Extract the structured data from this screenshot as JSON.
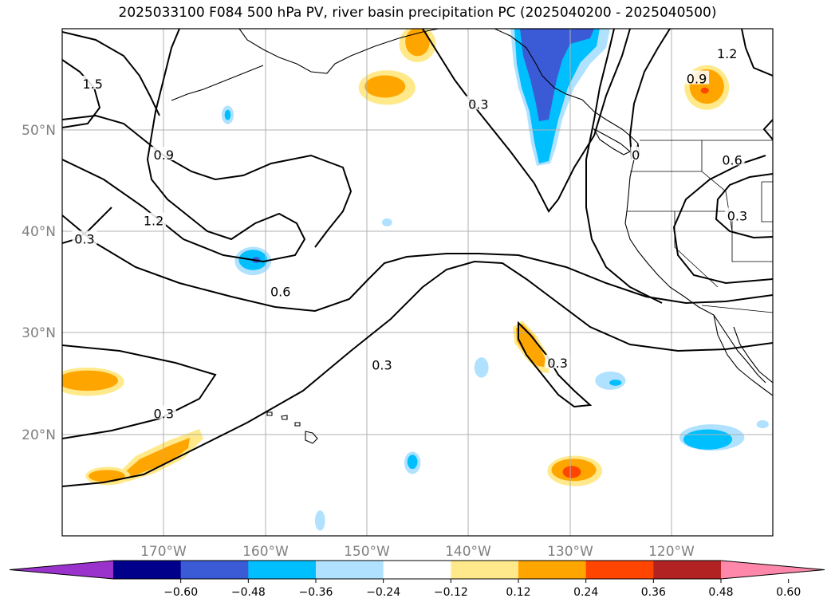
{
  "title": "2025033100 F084 500 hPa PV, river basin precipitation PC (2025040200 - 2025040500)",
  "map": {
    "projection": "PlateCarree",
    "lon_range": [
      -180,
      -110
    ],
    "lat_range": [
      10,
      60
    ],
    "lat_labels": [
      "50°N",
      "40°N",
      "30°N",
      "20°N"
    ],
    "lon_labels": [
      "170°W",
      "160°W",
      "150°W",
      "140°W",
      "130°W",
      "120°W"
    ],
    "lat_lines": [
      50,
      40,
      30,
      20
    ],
    "lon_lines": [
      -170,
      -160,
      -150,
      -140,
      -130,
      -120
    ],
    "grid": true
  },
  "contour_labels": [
    {
      "text": "1.5",
      "lon": -177.0,
      "lat": 54.5
    },
    {
      "text": "0.9",
      "lon": -170.0,
      "lat": 47.5
    },
    {
      "text": "1.2",
      "lon": -171.0,
      "lat": 41.0
    },
    {
      "text": "0.3",
      "lon": -177.8,
      "lat": 39.2
    },
    {
      "text": "0.6",
      "lon": -158.5,
      "lat": 34.0
    },
    {
      "text": "0.3",
      "lon": -148.5,
      "lat": 26.8
    },
    {
      "text": "0.3",
      "lon": -170.0,
      "lat": 22.0
    },
    {
      "text": "0.3",
      "lon": -139.0,
      "lat": 52.5
    },
    {
      "text": "0.3",
      "lon": -131.2,
      "lat": 27.0
    },
    {
      "text": "0.9",
      "lon": -117.5,
      "lat": 55.0
    },
    {
      "text": "1.2",
      "lon": -114.5,
      "lat": 57.5
    },
    {
      "text": "0.6",
      "lon": -114.0,
      "lat": 47.0
    },
    {
      "text": "0.3",
      "lon": -113.5,
      "lat": 41.5
    },
    {
      "text": "0",
      "lon": -123.5,
      "lat": 47.5
    }
  ],
  "colorbar": {
    "ticks": [
      "−0.60",
      "−0.48",
      "−0.36",
      "−0.24",
      "−0.12",
      "0.12",
      "0.24",
      "0.36",
      "0.48",
      "0.60"
    ],
    "levels": [
      -0.6,
      -0.48,
      -0.36,
      -0.24,
      -0.12,
      0.12,
      0.24,
      0.36,
      0.48,
      0.6
    ],
    "colors": [
      "#9933cc",
      "#00008b",
      "#3b5bd6",
      "#00bfff",
      "#b0e2ff",
      "#ffffff",
      "#ffe98a",
      "#ffa500",
      "#ff4500",
      "#b22222",
      "#ff88aa"
    ],
    "extend": "both"
  },
  "precip_blobs": [
    {
      "color": "#ffe98a",
      "lon": -148.0,
      "lat": 54.2,
      "rx": 2.8,
      "ry": 1.7
    },
    {
      "color": "#ffa500",
      "lon": -148.2,
      "lat": 54.3,
      "rx": 2.0,
      "ry": 1.1
    },
    {
      "color": "#ffe98a",
      "lon": -145.0,
      "lat": 58.5,
      "rx": 1.8,
      "ry": 1.8
    },
    {
      "color": "#ffa500",
      "lon": -145.0,
      "lat": 58.7,
      "rx": 1.2,
      "ry": 1.4
    },
    {
      "color": "#b0e2ff",
      "lon": -163.7,
      "lat": 51.5,
      "rx": 0.6,
      "ry": 0.9
    },
    {
      "color": "#00bfff",
      "lon": -163.7,
      "lat": 51.5,
      "rx": 0.3,
      "ry": 0.5
    },
    {
      "color": "#b0e2ff",
      "lon": -161.2,
      "lat": 37.1,
      "rx": 1.8,
      "ry": 1.4
    },
    {
      "color": "#00bfff",
      "lon": -161.2,
      "lat": 37.2,
      "rx": 1.4,
      "ry": 1.0
    },
    {
      "color": "#3b5bd6",
      "lon": -160.9,
      "lat": 37.2,
      "rx": 0.4,
      "ry": 0.3
    },
    {
      "color": "#b0e2ff",
      "lon": -148.0,
      "lat": 40.9,
      "rx": 0.5,
      "ry": 0.4
    },
    {
      "color": "#ffe98a",
      "lon": -177.5,
      "lat": 25.2,
      "rx": 3.6,
      "ry": 1.4
    },
    {
      "color": "#ffa500",
      "lon": -177.5,
      "lat": 25.3,
      "rx": 3.0,
      "ry": 1.0
    },
    {
      "color": "#ffe98a",
      "lon": -175.5,
      "lat": 15.9,
      "rx": 2.2,
      "ry": 0.9
    },
    {
      "color": "#ffa500",
      "lon": -175.6,
      "lat": 15.9,
      "rx": 1.8,
      "ry": 0.6
    },
    {
      "color": "#ffe98a",
      "lon": -129.5,
      "lat": 16.4,
      "rx": 2.7,
      "ry": 1.5
    },
    {
      "color": "#ffa500",
      "lon": -129.6,
      "lat": 16.5,
      "rx": 2.2,
      "ry": 1.1
    },
    {
      "color": "#ff4500",
      "lon": -129.8,
      "lat": 16.3,
      "rx": 0.9,
      "ry": 0.6
    },
    {
      "color": "#b0e2ff",
      "lon": -145.5,
      "lat": 17.2,
      "rx": 0.8,
      "ry": 1.1
    },
    {
      "color": "#00bfff",
      "lon": -145.5,
      "lat": 17.3,
      "rx": 0.5,
      "ry": 0.7
    },
    {
      "color": "#b0e2ff",
      "lon": -138.7,
      "lat": 26.6,
      "rx": 0.7,
      "ry": 1.0
    },
    {
      "color": "#b0e2ff",
      "lon": -126.0,
      "lat": 25.3,
      "rx": 1.5,
      "ry": 0.9
    },
    {
      "color": "#00bfff",
      "lon": -125.5,
      "lat": 25.1,
      "rx": 0.6,
      "ry": 0.3
    },
    {
      "color": "#b0e2ff",
      "lon": -116.0,
      "lat": 19.7,
      "rx": 3.2,
      "ry": 1.3
    },
    {
      "color": "#00bfff",
      "lon": -116.4,
      "lat": 19.5,
      "rx": 2.4,
      "ry": 1.0
    },
    {
      "color": "#b0e2ff",
      "lon": -111.0,
      "lat": 21.0,
      "rx": 0.6,
      "ry": 0.4
    },
    {
      "color": "#b0e2ff",
      "lon": -154.6,
      "lat": 11.5,
      "rx": 0.5,
      "ry": 1.0
    },
    {
      "color": "#ffe98a",
      "lon": -116.5,
      "lat": 54.2,
      "rx": 2.2,
      "ry": 2.2
    },
    {
      "color": "#ffa500",
      "lon": -116.5,
      "lat": 54.3,
      "rx": 1.7,
      "ry": 1.7
    },
    {
      "color": "#ff4500",
      "lon": -116.7,
      "lat": 53.9,
      "rx": 0.4,
      "ry": 0.3
    }
  ]
}
